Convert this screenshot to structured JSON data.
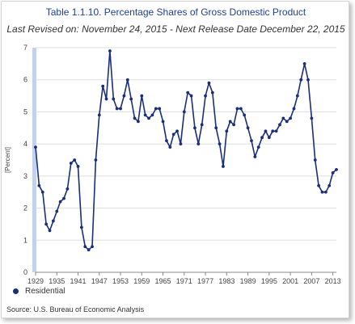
{
  "header": {
    "title": "Table 1.1.10. Percentage Shares of Gross Domestic Product",
    "subtitle": "Last Revised on: November 24, 2015 - Next Release Date December 22, 2015"
  },
  "footer": {
    "source": "Source: U.S. Bureau of Economic Analysis"
  },
  "colors": {
    "series": "#1a2e7a",
    "title": "#1f3f92",
    "grid": "#dddddd",
    "highlight_band": "#c3d1ee"
  },
  "chart_data": {
    "type": "line",
    "title": "Table 1.1.10. Percentage Shares of Gross Domestic Product",
    "subtitle": "Last Revised on: November 24, 2015 - Next Release Date December 22, 2015",
    "xlabel": "",
    "ylabel": "[Percent]",
    "xlim": [
      1929,
      2014
    ],
    "ylim": [
      0,
      7
    ],
    "yticks": [
      0,
      1,
      2,
      3,
      4,
      5,
      6,
      7
    ],
    "xticks": [
      1929,
      1935,
      1941,
      1947,
      1953,
      1959,
      1965,
      1971,
      1977,
      1983,
      1989,
      1995,
      2001,
      2007,
      2013
    ],
    "grid": "horizontal",
    "legend_position": "bottom-left",
    "series": [
      {
        "name": "Residential",
        "color": "#1a2e7a",
        "x": [
          1929,
          1930,
          1931,
          1932,
          1933,
          1934,
          1935,
          1936,
          1937,
          1938,
          1939,
          1940,
          1941,
          1942,
          1943,
          1944,
          1945,
          1946,
          1947,
          1948,
          1949,
          1950,
          1951,
          1952,
          1953,
          1954,
          1955,
          1956,
          1957,
          1958,
          1959,
          1960,
          1961,
          1962,
          1963,
          1964,
          1965,
          1966,
          1967,
          1968,
          1969,
          1970,
          1971,
          1972,
          1973,
          1974,
          1975,
          1976,
          1977,
          1978,
          1979,
          1980,
          1981,
          1982,
          1983,
          1984,
          1985,
          1986,
          1987,
          1988,
          1989,
          1990,
          1991,
          1992,
          1993,
          1994,
          1995,
          1996,
          1997,
          1998,
          1999,
          2000,
          2001,
          2002,
          2003,
          2004,
          2005,
          2006,
          2007,
          2008,
          2009,
          2010,
          2011,
          2012,
          2013,
          2014
        ],
        "values": [
          3.9,
          2.7,
          2.5,
          1.5,
          1.3,
          1.6,
          1.9,
          2.2,
          2.3,
          2.6,
          3.4,
          3.5,
          3.3,
          1.4,
          0.8,
          0.7,
          0.8,
          3.5,
          4.9,
          5.8,
          5.4,
          6.9,
          5.4,
          5.1,
          5.1,
          5.5,
          6.0,
          5.4,
          4.8,
          4.7,
          5.5,
          4.9,
          4.8,
          4.9,
          5.1,
          5.1,
          4.7,
          4.1,
          3.9,
          4.3,
          4.4,
          4.0,
          5.0,
          5.6,
          5.5,
          4.5,
          4.0,
          4.6,
          5.5,
          5.9,
          5.6,
          4.5,
          4.0,
          3.3,
          4.4,
          4.7,
          4.6,
          5.1,
          5.1,
          4.9,
          4.5,
          4.1,
          3.6,
          3.9,
          4.2,
          4.4,
          4.2,
          4.4,
          4.4,
          4.6,
          4.8,
          4.7,
          4.8,
          5.1,
          5.5,
          6.0,
          6.5,
          6.0,
          4.8,
          3.5,
          2.7,
          2.5,
          2.5,
          2.7,
          3.1,
          3.2
        ]
      }
    ]
  }
}
